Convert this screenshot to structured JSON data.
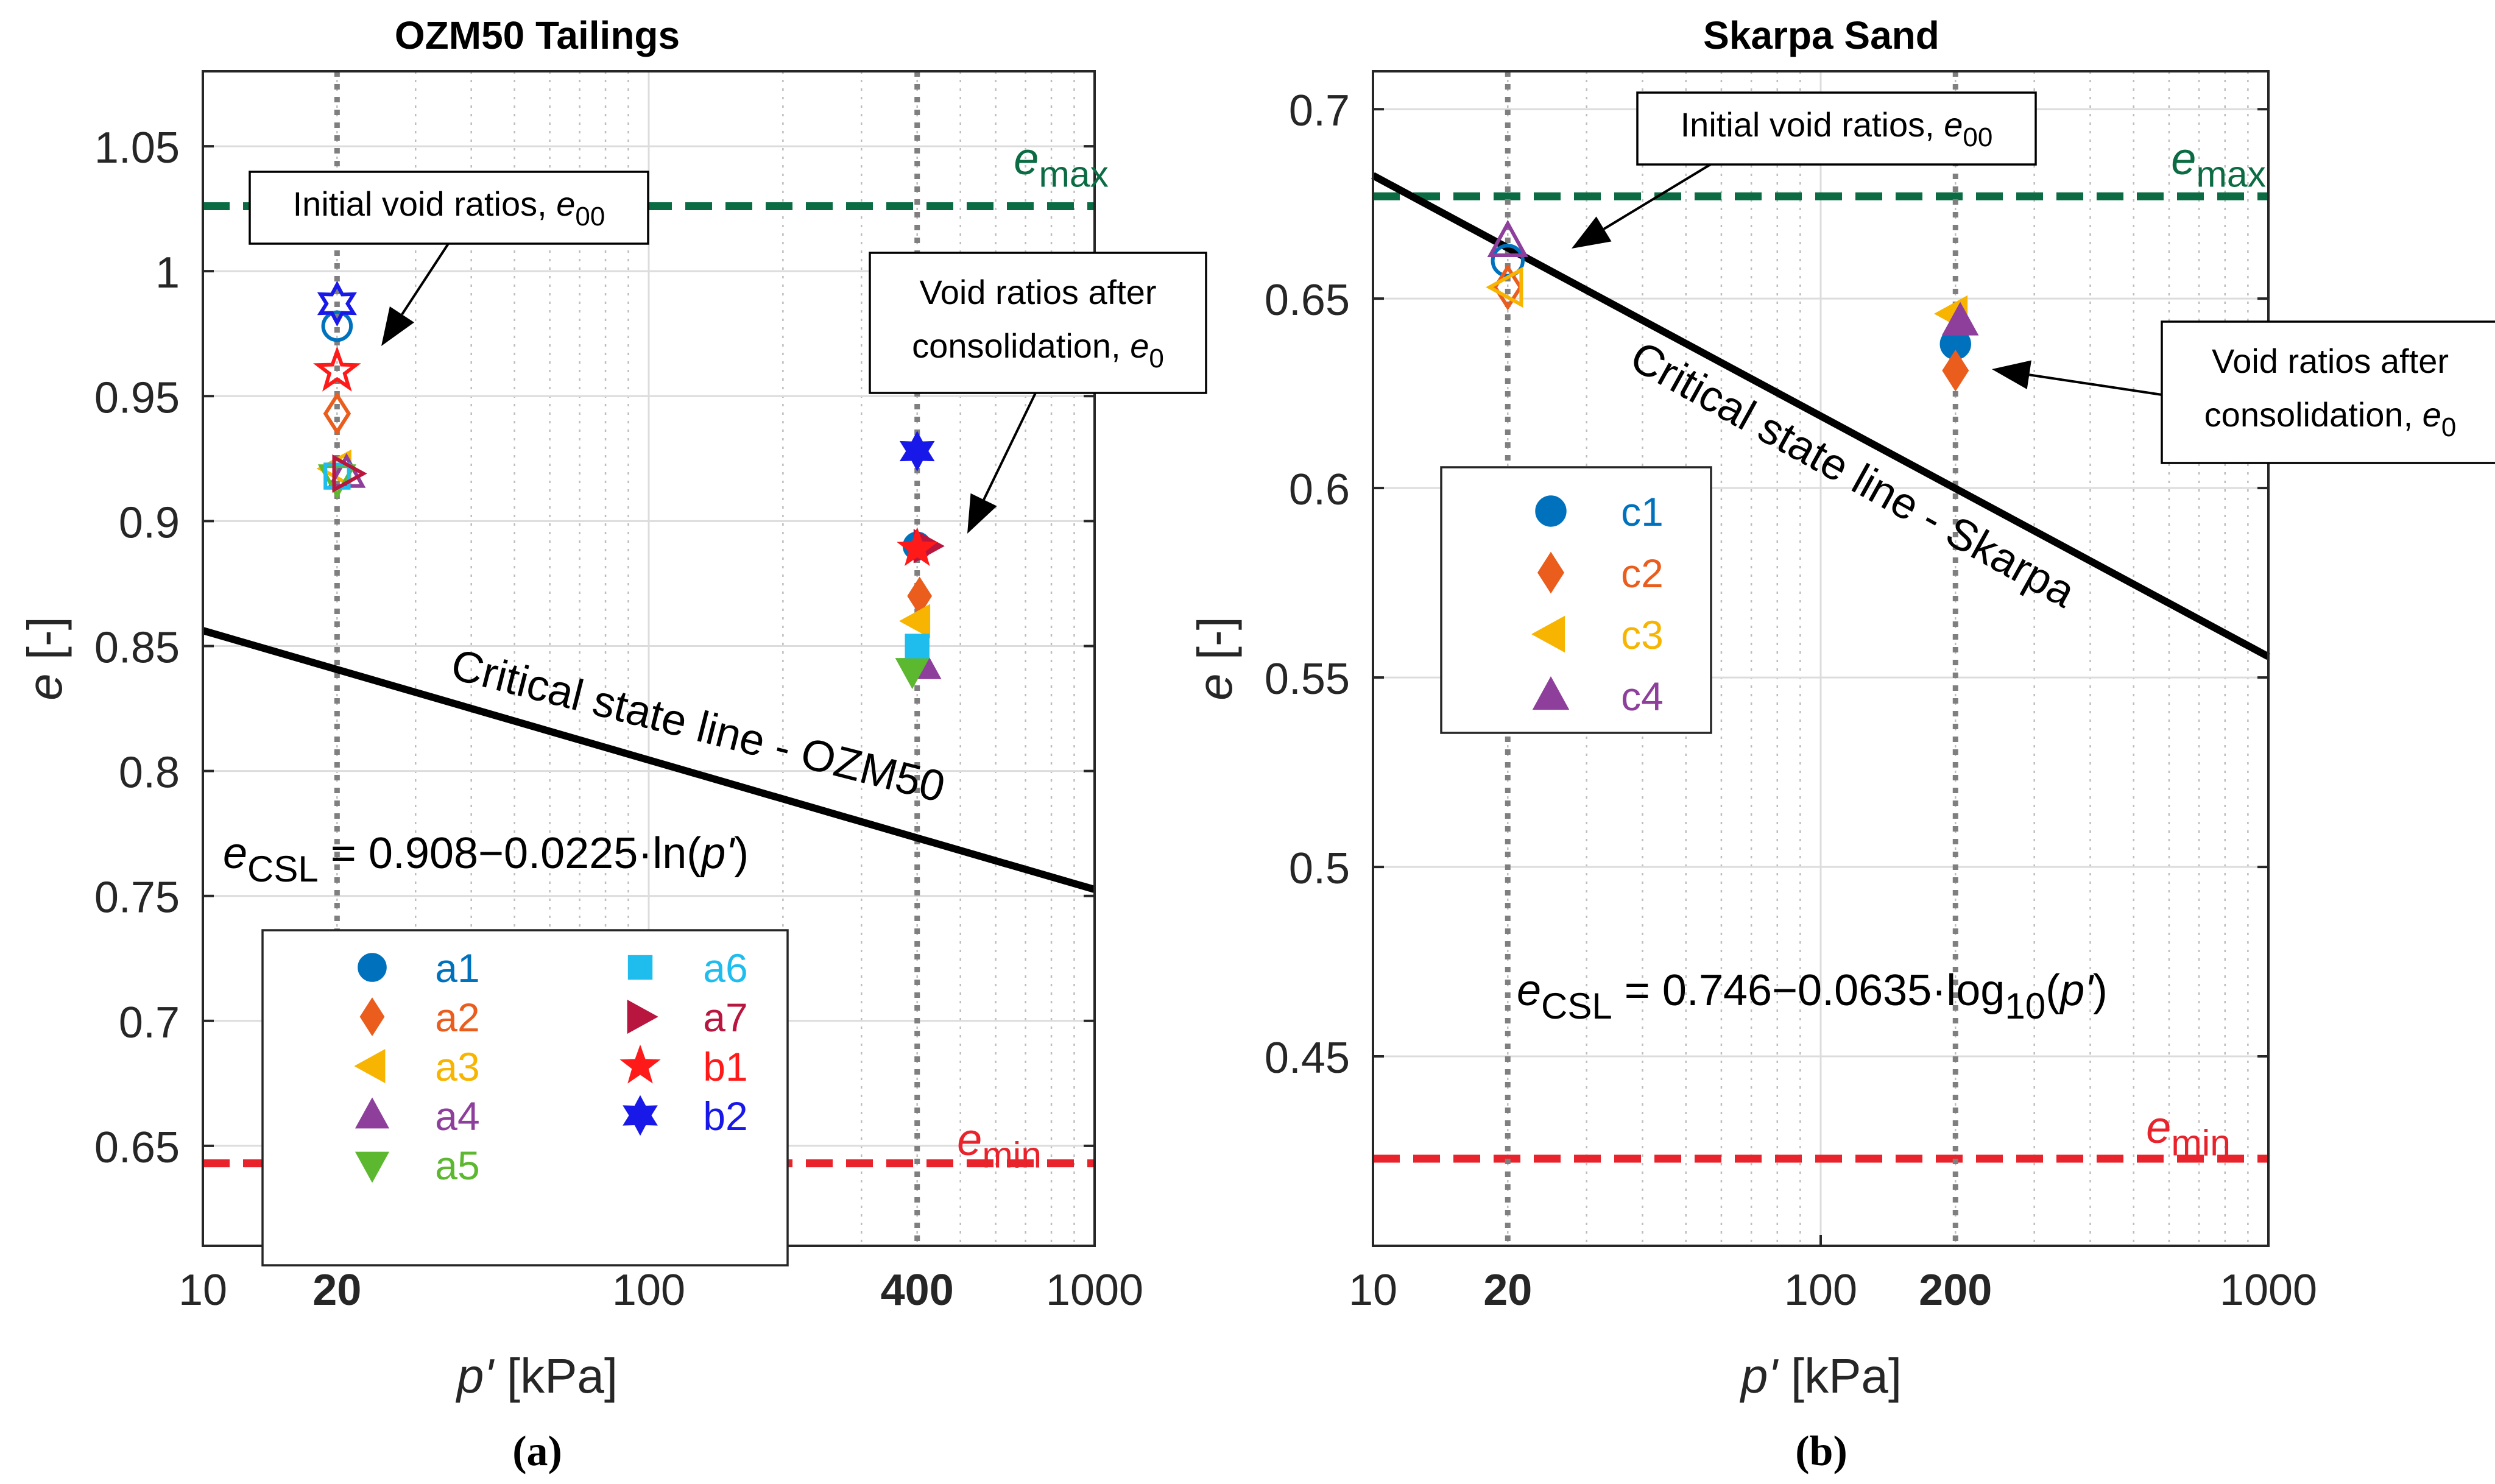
{
  "chart_data": [
    {
      "type": "scatter",
      "title": "OZM50 Tailings",
      "xlabel_prefix": "p'",
      "xlabel_suffix": " [kPa]",
      "ylabel_prefix": "e",
      "ylabel_suffix": " [-]",
      "x_scale": "log",
      "xlim": [
        10,
        1000
      ],
      "ylim": [
        0.61,
        1.08
      ],
      "xticks": [
        10,
        100,
        1000
      ],
      "xticks_bold": [
        20,
        400
      ],
      "yticks": [
        0.65,
        0.7,
        0.75,
        0.8,
        0.85,
        0.9,
        0.95,
        1,
        1.05
      ],
      "grid": true,
      "vlines": [
        20,
        400
      ],
      "e_max": 1.026,
      "e_min": 0.643,
      "e_max_label": "e",
      "e_max_sub": "max",
      "e_min_label": "e",
      "e_min_sub": "min",
      "csl": {
        "x": [
          10,
          1000
        ],
        "y": [
          0.8562,
          0.7526
        ]
      },
      "csl_label": "Critical state line - OZM50",
      "equation": {
        "lhs": "e",
        "lhs_sub": "CSL",
        "rhs": " = 0.908−0.0225·ln(",
        "var": "p'",
        "close": ")"
      },
      "annotations": [
        {
          "text": "Initial void ratios, ",
          "sym": "e",
          "sub": "00"
        },
        {
          "line1": "Void ratios after",
          "line2": "consolidation, ",
          "sym": "e",
          "sub": "0"
        }
      ],
      "series": [
        {
          "name": "a1",
          "color": "#0072bd",
          "marker": "circle",
          "initial": [
            20,
            0.978
          ],
          "consolidated": [
            400,
            0.89
          ]
        },
        {
          "name": "a2",
          "color": "#ea5d1c",
          "marker": "diamond",
          "initial": [
            20,
            0.943
          ],
          "consolidated": [
            405,
            0.87
          ]
        },
        {
          "name": "a3",
          "color": "#f7b400",
          "marker": "triangle-left",
          "initial": [
            20,
            0.921
          ],
          "consolidated": [
            400,
            0.86
          ]
        },
        {
          "name": "a4",
          "color": "#8e3f9c",
          "marker": "triangle-up",
          "initial": [
            21,
            0.919
          ],
          "consolidated": [
            415,
            0.842
          ]
        },
        {
          "name": "a5",
          "color": "#5cb82e",
          "marker": "triangle-down",
          "initial": [
            20,
            0.917
          ],
          "consolidated": [
            390,
            0.84
          ]
        },
        {
          "name": "a6",
          "color": "#1fbdee",
          "marker": "square",
          "initial": [
            20,
            0.918
          ],
          "consolidated": [
            400,
            0.85
          ]
        },
        {
          "name": "a7",
          "color": "#b8163e",
          "marker": "triangle-right",
          "initial": [
            21,
            0.919
          ],
          "consolidated": [
            420,
            0.89
          ]
        },
        {
          "name": "b1",
          "color": "#ff1a1a",
          "marker": "pentagram",
          "initial": [
            20,
            0.96
          ],
          "consolidated": [
            400,
            0.889
          ]
        },
        {
          "name": "b2",
          "color": "#1818e8",
          "marker": "hexagram",
          "initial": [
            20,
            0.987
          ],
          "consolidated": [
            400,
            0.928
          ]
        }
      ],
      "subcaption": "(a)"
    },
    {
      "type": "scatter",
      "title": "Skarpa Sand",
      "xlabel_prefix": "p'",
      "xlabel_suffix": " [kPa]",
      "ylabel_prefix": "e",
      "ylabel_suffix": " [-]",
      "x_scale": "log",
      "xlim": [
        10,
        1000
      ],
      "ylim": [
        0.4,
        0.71
      ],
      "xticks": [
        10,
        100,
        1000
      ],
      "xticks_bold": [
        20,
        200
      ],
      "yticks": [
        0.45,
        0.5,
        0.55,
        0.6,
        0.65,
        0.7
      ],
      "grid": true,
      "vlines": [
        20,
        200
      ],
      "e_max": 0.677,
      "e_min": 0.423,
      "e_max_label": "e",
      "e_max_sub": "max",
      "e_min_label": "e",
      "e_min_sub": "min",
      "csl": {
        "x": [
          10,
          1000
        ],
        "y": [
          0.6825,
          0.5555
        ]
      },
      "csl_label": "Critical state line - Skarpa",
      "equation": {
        "lhs": "e",
        "lhs_sub": "CSL",
        "rhs": " = 0.746−0.0635·log",
        "rhs_sub": "10",
        "open": "(",
        "var": "p'",
        "close": ")"
      },
      "annotations": [
        {
          "text": "Initial void ratios, ",
          "sym": "e",
          "sub": "00"
        },
        {
          "line1": "Void ratios after",
          "line2": "consolidation, ",
          "sym": "e",
          "sub": "0"
        }
      ],
      "series": [
        {
          "name": "c1",
          "color": "#0072bd",
          "marker": "circle",
          "initial": [
            20,
            0.66
          ],
          "consolidated": [
            200,
            0.638
          ]
        },
        {
          "name": "c2",
          "color": "#ea5d1c",
          "marker": "diamond",
          "initial": [
            20,
            0.653
          ],
          "consolidated": [
            200,
            0.631
          ]
        },
        {
          "name": "c3",
          "color": "#f7b400",
          "marker": "triangle-left",
          "initial": [
            20,
            0.653
          ],
          "consolidated": [
            198,
            0.646
          ]
        },
        {
          "name": "c4",
          "color": "#8e3f9c",
          "marker": "triangle-up",
          "initial": [
            20,
            0.665
          ],
          "consolidated": [
            205,
            0.644
          ]
        }
      ],
      "subcaption": "(b)"
    }
  ]
}
